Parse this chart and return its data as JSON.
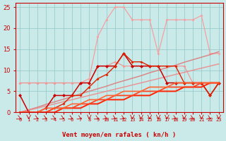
{
  "x": [
    0,
    1,
    2,
    3,
    4,
    5,
    6,
    7,
    8,
    9,
    10,
    11,
    12,
    13,
    14,
    15,
    16,
    17,
    18,
    19,
    20,
    21,
    22,
    23
  ],
  "xlabel": "Vent moyen/en rafales ( kn/h )",
  "bg_color": "#caeaea",
  "grid_color": "#99cccc",
  "lines": [
    {
      "y": [
        7,
        7,
        7,
        7,
        7,
        7,
        7,
        7,
        8,
        18,
        22,
        25,
        25,
        22,
        22,
        22,
        14,
        22,
        22,
        22,
        22,
        23,
        14,
        14
      ],
      "color": "#f4a0a0",
      "marker": "D",
      "ms": 2.0,
      "lw": 0.9,
      "alpha": 1.0
    },
    {
      "y": [
        0.0,
        0.6,
        1.2,
        1.9,
        2.5,
        3.1,
        3.7,
        4.4,
        5.0,
        5.6,
        6.2,
        6.9,
        7.5,
        8.1,
        8.7,
        9.4,
        10.0,
        10.6,
        11.2,
        11.9,
        12.5,
        13.1,
        13.7,
        14.4
      ],
      "color": "#dd7777",
      "marker": null,
      "ms": 0,
      "lw": 1.1,
      "alpha": 0.85
    },
    {
      "y": [
        0.0,
        0.5,
        1.0,
        1.5,
        2.0,
        2.5,
        3.0,
        3.5,
        4.0,
        4.5,
        5.0,
        5.5,
        6.0,
        6.5,
        7.0,
        7.5,
        8.0,
        8.5,
        9.0,
        9.5,
        10.0,
        10.5,
        11.0,
        11.5
      ],
      "color": "#ee8888",
      "marker": null,
      "ms": 0,
      "lw": 1.1,
      "alpha": 0.85
    },
    {
      "y": [
        7,
        7,
        7,
        7,
        7,
        7,
        7,
        7,
        7,
        11,
        11,
        12,
        11,
        11,
        11,
        11,
        11,
        11,
        11,
        11,
        7,
        7,
        7,
        7
      ],
      "color": "#ee9999",
      "marker": "D",
      "ms": 2.0,
      "lw": 0.9,
      "alpha": 1.0
    },
    {
      "y": [
        4,
        0,
        0,
        1,
        4,
        4,
        4,
        7,
        7,
        11,
        11,
        11,
        14,
        11,
        11,
        11,
        11,
        7,
        7,
        7,
        7,
        7,
        4,
        7
      ],
      "color": "#cc0000",
      "marker": "D",
      "ms": 2.5,
      "lw": 1.1,
      "alpha": 1.0
    },
    {
      "y": [
        0,
        0,
        0,
        0,
        1,
        2,
        4,
        4,
        6,
        8,
        9,
        11,
        14,
        12,
        12,
        11,
        11,
        11,
        11,
        7,
        7,
        7,
        4,
        7
      ],
      "color": "#dd2200",
      "marker": "D",
      "ms": 2.0,
      "lw": 1.0,
      "alpha": 1.0
    },
    {
      "y": [
        0,
        0,
        0,
        0,
        0,
        1,
        1,
        1,
        2,
        2,
        3,
        3,
        3,
        4,
        4,
        4,
        5,
        5,
        5,
        6,
        6,
        6,
        7,
        7
      ],
      "color": "#ff2200",
      "marker": null,
      "ms": 0,
      "lw": 1.4,
      "alpha": 1.0
    },
    {
      "y": [
        0,
        0,
        0,
        0,
        1,
        1,
        1,
        2,
        2,
        3,
        3,
        4,
        4,
        4,
        5,
        5,
        5,
        6,
        6,
        6,
        6,
        7,
        7,
        7
      ],
      "color": "#ff4422",
      "marker": null,
      "ms": 0,
      "lw": 1.3,
      "alpha": 1.0
    },
    {
      "y": [
        0,
        0,
        0,
        1,
        1,
        1,
        2,
        2,
        3,
        3,
        4,
        4,
        5,
        5,
        5,
        6,
        6,
        6,
        7,
        7,
        7,
        7,
        7,
        7
      ],
      "color": "#ff6633",
      "marker": null,
      "ms": 0,
      "lw": 1.2,
      "alpha": 1.0
    }
  ],
  "ylim": [
    0,
    26
  ],
  "yticks": [
    0,
    5,
    10,
    15,
    20,
    25
  ],
  "axis_color": "#cc0000",
  "tick_color": "#cc0000",
  "label_color": "#cc0000",
  "wind_arrows": [
    45,
    0,
    45,
    45,
    45,
    45,
    45,
    45,
    0,
    45,
    45,
    45,
    45,
    0,
    0,
    0,
    0,
    0,
    45,
    0,
    45,
    0,
    45,
    0
  ]
}
